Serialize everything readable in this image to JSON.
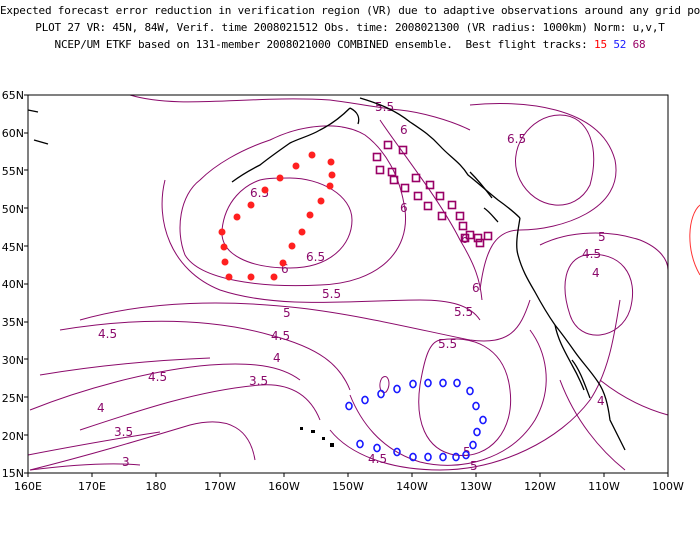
{
  "header": {
    "line1": "Expected forecast error reduction in verification region (VR) due to adaptive observations around any grid point.",
    "line2": "PLOT 27 VR: 45N, 84W, Verif. time 2008021512 Obs. time: 2008021300 (VR radius: 1000km) Norm: u,v,T",
    "line3_prefix": "NCEP/UM ETKF based on 131-member 2008021000 COMBINED ensemble.  Best flight tracks: ",
    "track1": "15",
    "track2": "52",
    "track3": "68"
  },
  "axes": {
    "lon_labels": [
      "160E",
      "170E",
      "180",
      "170W",
      "160W",
      "150W",
      "140W",
      "130W",
      "120W",
      "110W",
      "100W"
    ],
    "lat_labels": [
      "15N",
      "20N",
      "25N",
      "30N",
      "35N",
      "40N",
      "45N",
      "50N",
      "55N",
      "60N",
      "65N"
    ]
  },
  "contour_labels": [
    "5.5",
    "6",
    "6.5",
    "6.5",
    "6",
    "6.5",
    "6",
    "5.5",
    "6",
    "6",
    "5",
    "5.5",
    "4.5",
    "5",
    "4.5",
    "4",
    "4.5",
    "3.5",
    "4",
    "3.5",
    "3",
    "5.5",
    "4.5",
    "5",
    "5",
    "4.5",
    "4",
    "4",
    "4"
  ],
  "flight_tracks": [
    {
      "id": "15",
      "color": "#ff2020",
      "marker": "filled-circle"
    },
    {
      "id": "52",
      "color": "#1a1aff",
      "marker": "open-circle"
    },
    {
      "id": "68",
      "color": "#990066",
      "marker": "open-square"
    }
  ],
  "colors": {
    "contour": "#8b0a6b",
    "coast": "#000000"
  }
}
